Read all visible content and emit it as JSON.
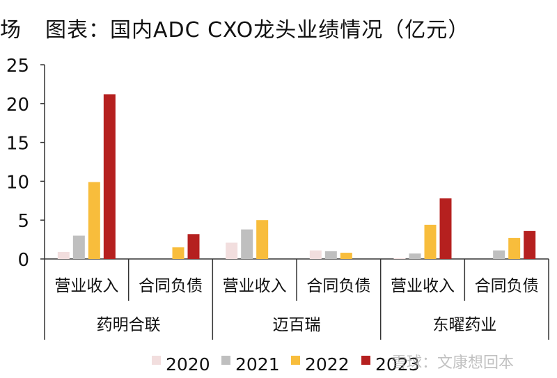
{
  "title": "图表：国内ADC CXO龙头业绩情况（亿元）",
  "title_fragment": "场",
  "watermark": "雪球：文康想回本",
  "colors": {
    "2020": "#f2dede",
    "2021": "#bfbfbf",
    "2022": "#f8bd3c",
    "2023": "#b5201f"
  },
  "chart_data": {
    "type": "bar",
    "title": "图表：国内ADC CXO龙头业绩情况（亿元）",
    "ylim": [
      0,
      25
    ],
    "yticks": [
      0,
      5,
      10,
      15,
      20,
      25
    ],
    "grid": false,
    "legend_position": "bottom",
    "groups": [
      "药明合联",
      "迈百瑞",
      "东曜药业"
    ],
    "metrics": [
      "营业收入",
      "合同负债"
    ],
    "categories": [
      "药明合联-营业收入",
      "药明合联-合同负债",
      "迈百瑞-营业收入",
      "迈百瑞-合同负债",
      "东曜药业-营业收入",
      "东曜药业-合同负债"
    ],
    "series": [
      {
        "name": "2020",
        "values": [
          0.9,
          null,
          2.1,
          1.1,
          0.1,
          null
        ]
      },
      {
        "name": "2021",
        "values": [
          3.0,
          null,
          3.8,
          1.0,
          0.7,
          1.1
        ]
      },
      {
        "name": "2022",
        "values": [
          9.9,
          1.5,
          5.0,
          0.8,
          4.4,
          2.7
        ]
      },
      {
        "name": "2023",
        "values": [
          21.2,
          3.2,
          null,
          null,
          7.8,
          3.6
        ]
      }
    ]
  }
}
